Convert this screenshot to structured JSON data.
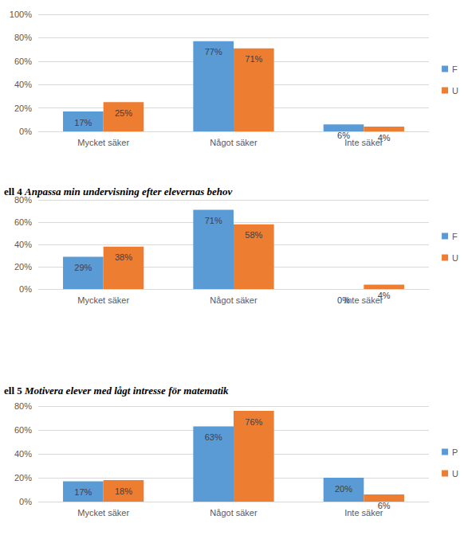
{
  "chart_data": [
    {
      "type": "bar",
      "categories": [
        "Mycket säker",
        "Något säker",
        "Inte säker"
      ],
      "series": [
        {
          "name": "F",
          "color": "#5b9bd5",
          "values": [
            17,
            77,
            6
          ],
          "value_labels": [
            "17%",
            "77%",
            "6%"
          ]
        },
        {
          "name": "U",
          "color": "#ed7d31",
          "values": [
            25,
            71,
            4
          ],
          "value_labels": [
            "25%",
            "71%",
            "4%"
          ]
        }
      ],
      "ylim": [
        0,
        100
      ],
      "yticks": [
        {
          "value": 0,
          "label": "0%"
        },
        {
          "value": 20,
          "label": "20%"
        },
        {
          "value": 40,
          "label": "40%"
        },
        {
          "value": 60,
          "label": "60%"
        },
        {
          "value": 80,
          "label": "80%"
        },
        {
          "value": 100,
          "label": "100%"
        }
      ],
      "grid": true,
      "legend": "right",
      "data_labels": true
    },
    {
      "type": "bar",
      "title": "ell 4 Anpassa min undervisning efter elevernas behov",
      "categories": [
        "Mycket säker",
        "Något säker",
        "Inte säker"
      ],
      "series": [
        {
          "name": "F",
          "color": "#5b9bd5",
          "values": [
            29,
            71,
            0
          ],
          "value_labels": [
            "29%",
            "71%",
            "0%"
          ]
        },
        {
          "name": "U",
          "color": "#ed7d31",
          "values": [
            38,
            58,
            4
          ],
          "value_labels": [
            "38%",
            "58%",
            "4%"
          ]
        }
      ],
      "ylim": [
        0,
        80
      ],
      "yticks": [
        {
          "value": 0,
          "label": "0%"
        },
        {
          "value": 20,
          "label": "20%"
        },
        {
          "value": 40,
          "label": "40%"
        },
        {
          "value": 60,
          "label": "60%"
        },
        {
          "value": 80,
          "label": "80%"
        }
      ],
      "grid": true,
      "legend": "right",
      "data_labels": true
    },
    {
      "type": "bar",
      "title": "ell 5 Motivera elever med lågt intresse för matematik",
      "categories": [
        "Mycket säker",
        "Något säker",
        "Inte säker"
      ],
      "series": [
        {
          "name": "P",
          "color": "#5b9bd5",
          "values": [
            17,
            63,
            20
          ],
          "value_labels": [
            "17%",
            "63%",
            "20%"
          ]
        },
        {
          "name": "U",
          "color": "#ed7d31",
          "values": [
            18,
            76,
            6
          ],
          "value_labels": [
            "18%",
            "76%",
            "6%"
          ]
        }
      ],
      "ylim": [
        0,
        80
      ],
      "yticks": [
        {
          "value": 0,
          "label": "0%"
        },
        {
          "value": 20,
          "label": "20%"
        },
        {
          "value": 40,
          "label": "40%"
        },
        {
          "value": 60,
          "label": "60%"
        },
        {
          "value": 80,
          "label": "80%"
        }
      ],
      "grid": true,
      "legend": "right",
      "data_labels": true
    }
  ]
}
